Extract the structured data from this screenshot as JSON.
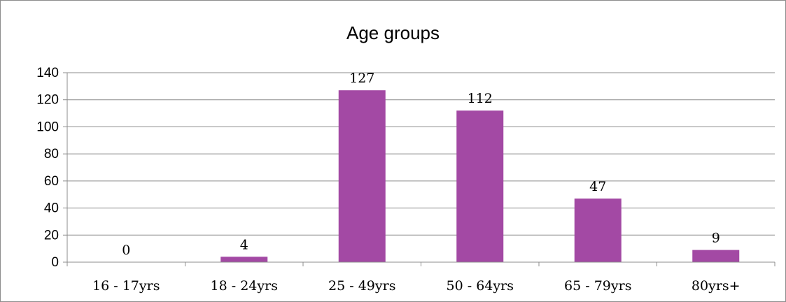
{
  "chart_data": {
    "type": "bar",
    "title": "Age groups",
    "xlabel": "",
    "ylabel": "",
    "categories": [
      "16 - 17yrs",
      "18 - 24yrs",
      "25 - 49yrs",
      "50 - 64yrs",
      "65 - 79yrs",
      "80yrs+"
    ],
    "values": [
      0,
      4,
      127,
      112,
      47,
      9
    ],
    "data_labels": [
      "0",
      "4",
      "127",
      "112",
      "47",
      "9"
    ],
    "ylim": [
      0,
      140
    ],
    "yticks": [
      0,
      20,
      40,
      60,
      80,
      100,
      120,
      140
    ],
    "ytick_labels": [
      "0",
      "20",
      "40",
      "60",
      "80",
      "100",
      "120",
      "140"
    ],
    "grid": true,
    "legend": "none",
    "bar_color": "#A349A4"
  }
}
